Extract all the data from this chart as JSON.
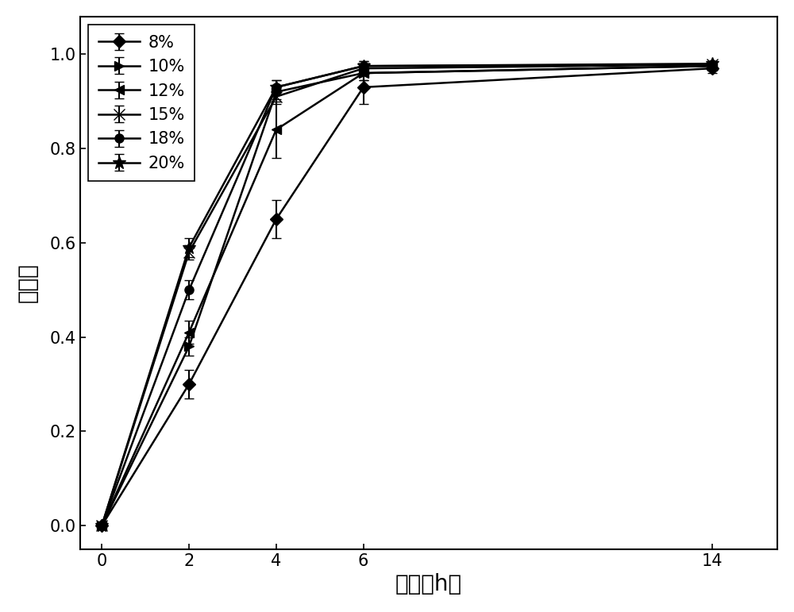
{
  "x": [
    0,
    2,
    4,
    6,
    14
  ],
  "series": [
    {
      "label": "8%",
      "y": [
        0.0,
        0.3,
        0.65,
        0.93,
        0.97
      ],
      "yerr": [
        0.0,
        0.03,
        0.04,
        0.035,
        0.01
      ],
      "marker": "D",
      "markersize": 8,
      "markerfill": "black"
    },
    {
      "label": "10%",
      "y": [
        0.0,
        0.38,
        0.92,
        0.96,
        0.975
      ],
      "yerr": [
        0.0,
        0.02,
        0.015,
        0.015,
        0.005
      ],
      "marker": ">",
      "markersize": 8,
      "markerfill": "black"
    },
    {
      "label": "12%",
      "y": [
        0.0,
        0.41,
        0.84,
        0.96,
        0.975
      ],
      "yerr": [
        0.0,
        0.025,
        0.06,
        0.015,
        0.005
      ],
      "marker": "<",
      "markersize": 8,
      "markerfill": "black"
    },
    {
      "label": "15%",
      "y": [
        0.0,
        0.58,
        0.91,
        0.97,
        0.978
      ],
      "yerr": [
        0.0,
        0.015,
        0.015,
        0.01,
        0.005
      ],
      "marker": "x",
      "markersize": 10,
      "markerfill": "black"
    },
    {
      "label": "18%",
      "y": [
        0.0,
        0.5,
        0.93,
        0.975,
        0.978
      ],
      "yerr": [
        0.0,
        0.02,
        0.015,
        0.01,
        0.005
      ],
      "marker": "o",
      "markersize": 8,
      "markerfill": "black"
    },
    {
      "label": "20%",
      "y": [
        0.0,
        0.59,
        0.93,
        0.975,
        0.98
      ],
      "yerr": [
        0.0,
        0.02,
        0.015,
        0.01,
        0.005
      ],
      "marker": "*",
      "markersize": 12,
      "markerfill": "black"
    }
  ],
  "xlabel": "时间（h）",
  "ylabel": "降解率",
  "xlim": [
    -0.5,
    15.5
  ],
  "ylim": [
    -0.05,
    1.08
  ],
  "xticks": [
    0,
    2,
    4,
    6,
    14
  ],
  "yticks": [
    0.0,
    0.2,
    0.4,
    0.6,
    0.8,
    1.0
  ],
  "figsize": [
    10.0,
    7.71
  ],
  "dpi": 100,
  "line_color": "black",
  "legend_fontsize": 15,
  "axis_label_fontsize": 20,
  "tick_fontsize": 15
}
